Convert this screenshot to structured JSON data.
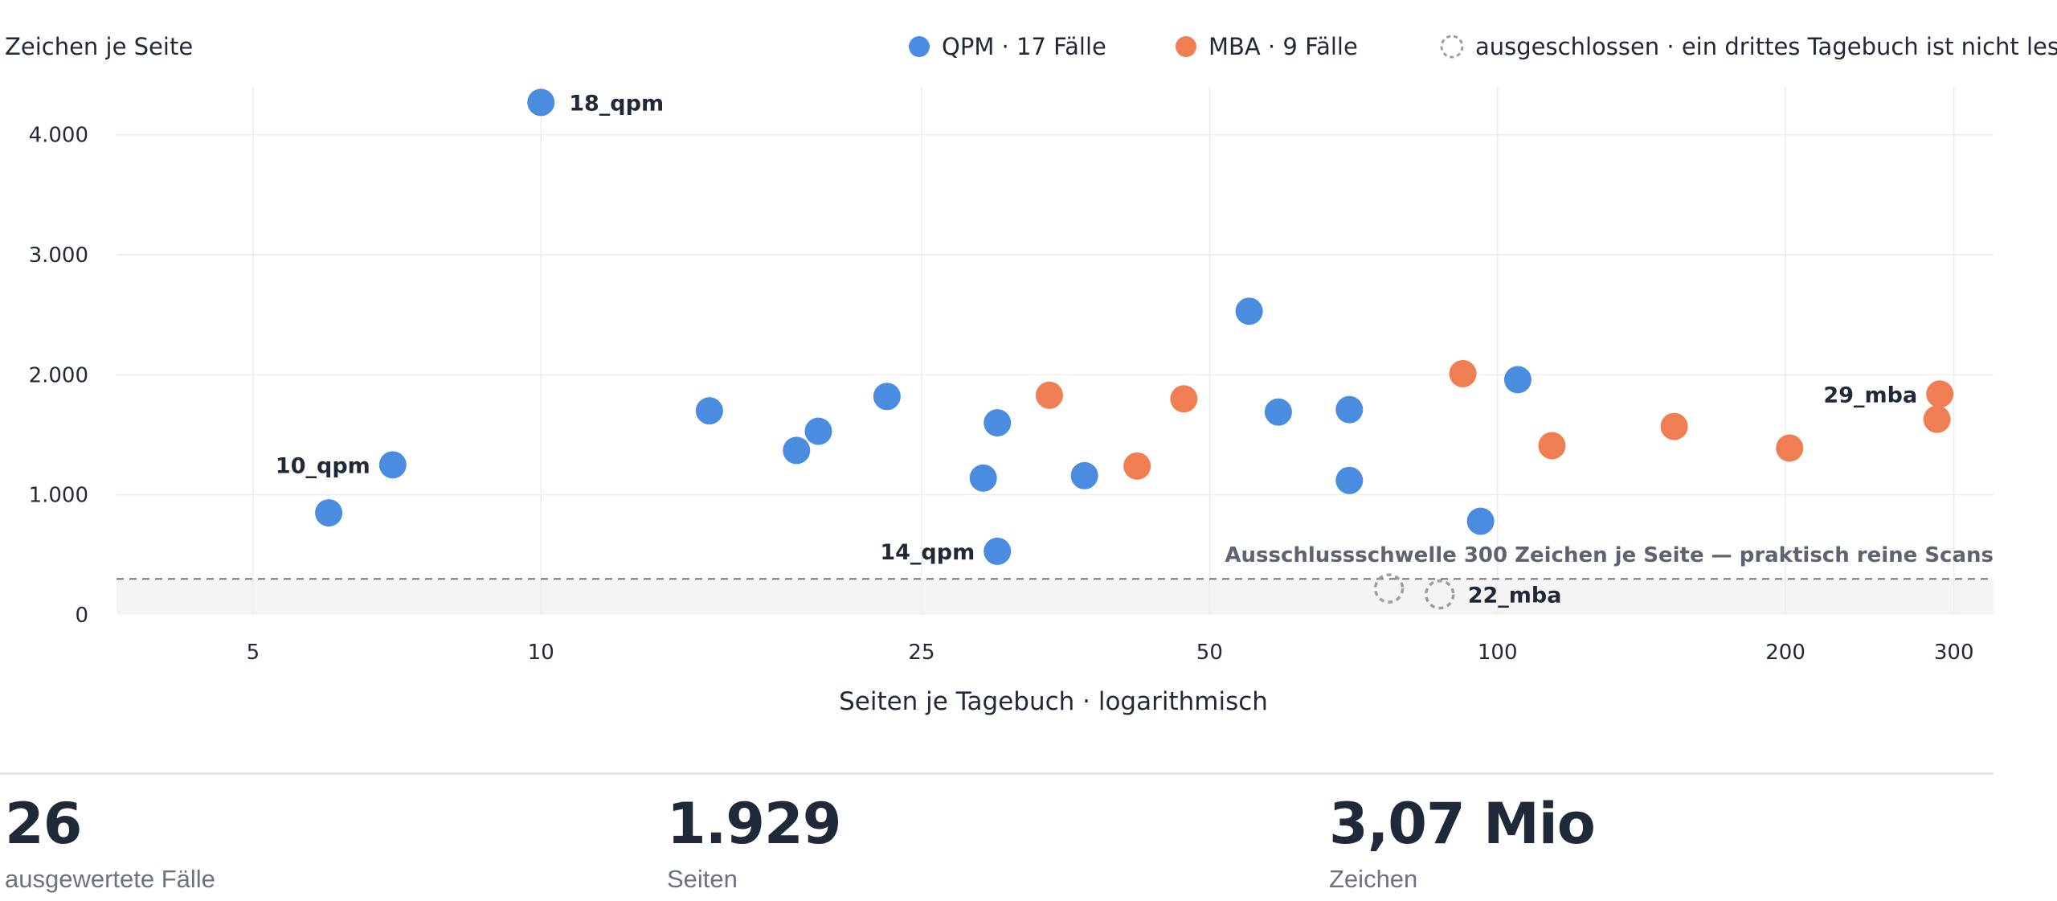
{
  "chart_data": {
    "type": "scatter",
    "ylabel": "Zeichen je Seite",
    "xlabel": "Seiten je Tagebuch · logarithmisch",
    "x_scale": "log",
    "xlim": [
      3.6,
      330
    ],
    "ylim": [
      0,
      4400
    ],
    "x_ticks": [
      5,
      10,
      25,
      50,
      100,
      200,
      300
    ],
    "x_tick_labels": [
      "5",
      "10",
      "25",
      "50",
      "100",
      "200",
      "300"
    ],
    "y_ticks": [
      0,
      1000,
      2000,
      3000,
      4000
    ],
    "y_tick_labels": [
      "0",
      "1.000",
      "2.000",
      "3.000",
      "4.000"
    ],
    "grid": true,
    "legend_position": "top-right",
    "legend": [
      {
        "key": "qpm",
        "label": "QPM · 17 Fälle"
      },
      {
        "key": "mba",
        "label": "MBA · 9 Fälle"
      },
      {
        "key": "excluded",
        "label": "ausgeschlossen · ein drittes Tagebuch ist nicht lesbar"
      }
    ],
    "colors": {
      "qpm": "#4a8ce0",
      "mba": "#ef7f52",
      "excluded": "#9a9fa6"
    },
    "threshold": {
      "y": 300,
      "label": "Ausschlussschwelle 300 Zeichen je Seite — praktisch reine Scans"
    },
    "series": [
      {
        "key": "qpm",
        "points": [
          {
            "x": 6,
            "y": 850
          },
          {
            "x": 7,
            "y": 1250,
            "label": "10_qpm"
          },
          {
            "x": 10,
            "y": 4270,
            "label": "18_qpm"
          },
          {
            "x": 15,
            "y": 1700
          },
          {
            "x": 18.5,
            "y": 1370
          },
          {
            "x": 19.5,
            "y": 1530
          },
          {
            "x": 23,
            "y": 1820
          },
          {
            "x": 29,
            "y": 1140
          },
          {
            "x": 30,
            "y": 1600
          },
          {
            "x": 30,
            "y": 530,
            "label": "14_qpm"
          },
          {
            "x": 37,
            "y": 1160
          },
          {
            "x": 55,
            "y": 2530
          },
          {
            "x": 59,
            "y": 1690
          },
          {
            "x": 70,
            "y": 1710
          },
          {
            "x": 70,
            "y": 1120
          },
          {
            "x": 96,
            "y": 780
          },
          {
            "x": 105,
            "y": 1960
          }
        ]
      },
      {
        "key": "mba",
        "points": [
          {
            "x": 34,
            "y": 1830
          },
          {
            "x": 42,
            "y": 1240
          },
          {
            "x": 47,
            "y": 1800
          },
          {
            "x": 92,
            "y": 2010
          },
          {
            "x": 114,
            "y": 1410
          },
          {
            "x": 153,
            "y": 1570
          },
          {
            "x": 202,
            "y": 1390
          },
          {
            "x": 288,
            "y": 1630
          },
          {
            "x": 290,
            "y": 1840,
            "label": "29_mba"
          }
        ]
      },
      {
        "key": "excluded",
        "points": [
          {
            "x": 77,
            "y": 220
          },
          {
            "x": 87,
            "y": 170,
            "label": "22_mba"
          }
        ]
      }
    ]
  },
  "kpis": [
    {
      "value": "26",
      "label": "ausgewertete Fälle"
    },
    {
      "value": "1.929",
      "label": "Seiten"
    },
    {
      "value": "3,07 Mio",
      "label": "Zeichen"
    }
  ]
}
